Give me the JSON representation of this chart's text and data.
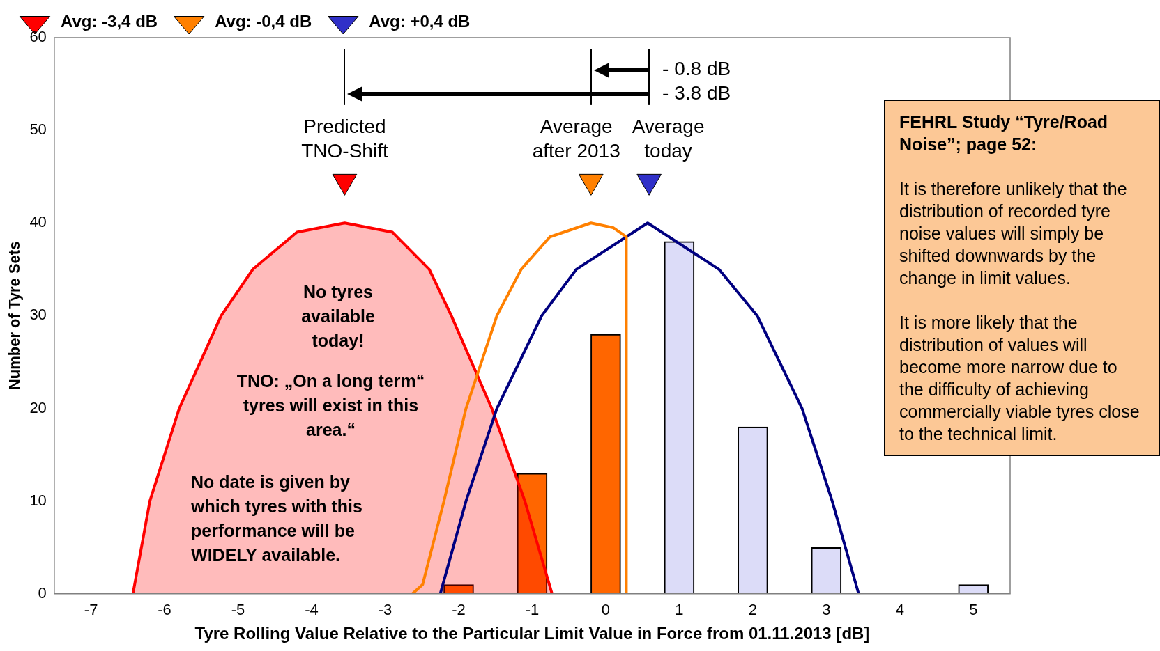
{
  "chart_data": {
    "type": "bar",
    "xlabel": "Tyre Rolling Value Relative to the Particular Limit Value in Force from 01.11.2013 [dB]",
    "ylabel": "Number of Tyre Sets",
    "xlim": [
      -7.5,
      5.5
    ],
    "xticks": [
      -7,
      -6,
      -5,
      -4,
      -3,
      -2,
      -1,
      0,
      1,
      2,
      3,
      4,
      5
    ],
    "ylim": [
      0,
      60
    ],
    "yticks": [
      0,
      10,
      20,
      30,
      40,
      50,
      60
    ],
    "grid": false,
    "legend": "top left",
    "series": [
      {
        "type": "area",
        "color": "#ff0000",
        "x": [
          -6.43,
          -6.2,
          -5.8,
          -5.23,
          -4.8,
          -4.2,
          -3.55,
          -2.9,
          -2.4,
          -2.1,
          -1.55,
          -1.1,
          -0.73
        ],
        "values": [
          0,
          10,
          20,
          30,
          35,
          39,
          40,
          39,
          35,
          30,
          20,
          10,
          0
        ]
      },
      {
        "color": "#ff6600",
        "x": [
          -2,
          -1,
          0
        ],
        "values": [
          1,
          13,
          28
        ]
      },
      {
        "color": "#dcdcf8",
        "x": [
          1,
          2,
          3,
          5
        ],
        "values": [
          38,
          18,
          5,
          1
        ]
      },
      {
        "type": "line",
        "color": "#ff8000",
        "x": [
          -2.63,
          -2.49,
          -2.2,
          -1.9,
          -1.48,
          -1.15,
          -0.76,
          -0.2,
          0.1,
          0.28,
          0.28
        ],
        "values": [
          0,
          1,
          10,
          20,
          30,
          35,
          38.5,
          40,
          39.5,
          38.5,
          0
        ]
      },
      {
        "type": "line",
        "color": "#000080",
        "x": [
          -2.25,
          -1.9,
          -1.48,
          -0.87,
          -0.4,
          0.57,
          1.54,
          2.06,
          2.67,
          3.08,
          3.44
        ],
        "values": [
          0,
          10,
          20,
          30,
          35,
          40,
          35,
          30,
          20,
          10,
          0
        ]
      },
      {
        "type": "scatter",
        "name": "Avg: -3,4 dB",
        "marker": "triangle",
        "color": "#ff0000",
        "x": [
          -3.55
        ],
        "values": [
          44.5
        ]
      },
      {
        "type": "scatter",
        "name": "Avg: -0,4 dB",
        "marker": "triangle",
        "color": "#ff8000",
        "x": [
          -0.2
        ],
        "values": [
          44.5
        ]
      },
      {
        "type": "scatter",
        "name": "Avg: +0,4 dB",
        "marker": "triangle",
        "color": "#3030c8",
        "x": [
          0.59
        ],
        "values": [
          44.5
        ]
      }
    ],
    "annotations": [
      "Predicted TNO-Shift",
      "Average after 2013",
      "Average today",
      "- 0.8 dB",
      "- 3.8 dB",
      "No tyres available today!",
      "TNO: „On a long term“ tyres will exist in this area.“",
      "No date is given by which tyres with this performance will be WIDELY available.",
      "FEHRL Study “Tyre/Road Noise”; page 52:",
      "It is therefore unlikely that the distribution of recorded tyre noise values will simply be shifted downwards by the change in limit values.",
      "It is more likely that the distribution of values will become more narrow due to the difficulty of achieving commercially viable tyres close to the technical limit."
    ]
  }
}
